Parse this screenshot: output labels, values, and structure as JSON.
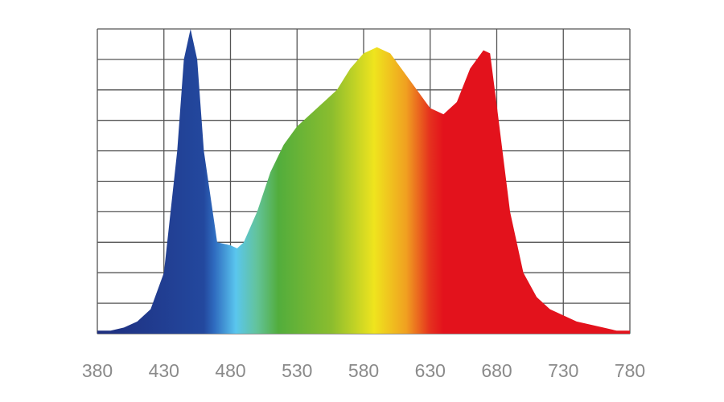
{
  "chart_data": {
    "type": "area",
    "x": [
      380,
      390,
      400,
      410,
      420,
      430,
      440,
      445,
      450,
      455,
      460,
      470,
      480,
      485,
      490,
      500,
      510,
      520,
      530,
      540,
      550,
      560,
      570,
      580,
      590,
      600,
      610,
      620,
      630,
      640,
      650,
      660,
      670,
      675,
      680,
      690,
      700,
      710,
      720,
      730,
      740,
      750,
      760,
      770,
      780
    ],
    "values": [
      0.01,
      0.01,
      0.02,
      0.04,
      0.08,
      0.2,
      0.6,
      0.9,
      1.0,
      0.9,
      0.6,
      0.3,
      0.29,
      0.28,
      0.3,
      0.4,
      0.53,
      0.62,
      0.68,
      0.72,
      0.76,
      0.8,
      0.87,
      0.92,
      0.94,
      0.92,
      0.86,
      0.8,
      0.74,
      0.72,
      0.76,
      0.87,
      0.93,
      0.92,
      0.75,
      0.4,
      0.2,
      0.12,
      0.08,
      0.06,
      0.04,
      0.03,
      0.02,
      0.01,
      0.01
    ],
    "xlim": [
      380,
      780
    ],
    "xticks": [
      380,
      430,
      480,
      530,
      580,
      630,
      680,
      730,
      780
    ],
    "ylim": [
      0,
      1
    ],
    "ygrid": [
      0,
      0.1,
      0.2,
      0.3,
      0.4,
      0.5,
      0.6,
      0.7,
      0.8,
      0.9,
      1
    ],
    "grid": true
  }
}
